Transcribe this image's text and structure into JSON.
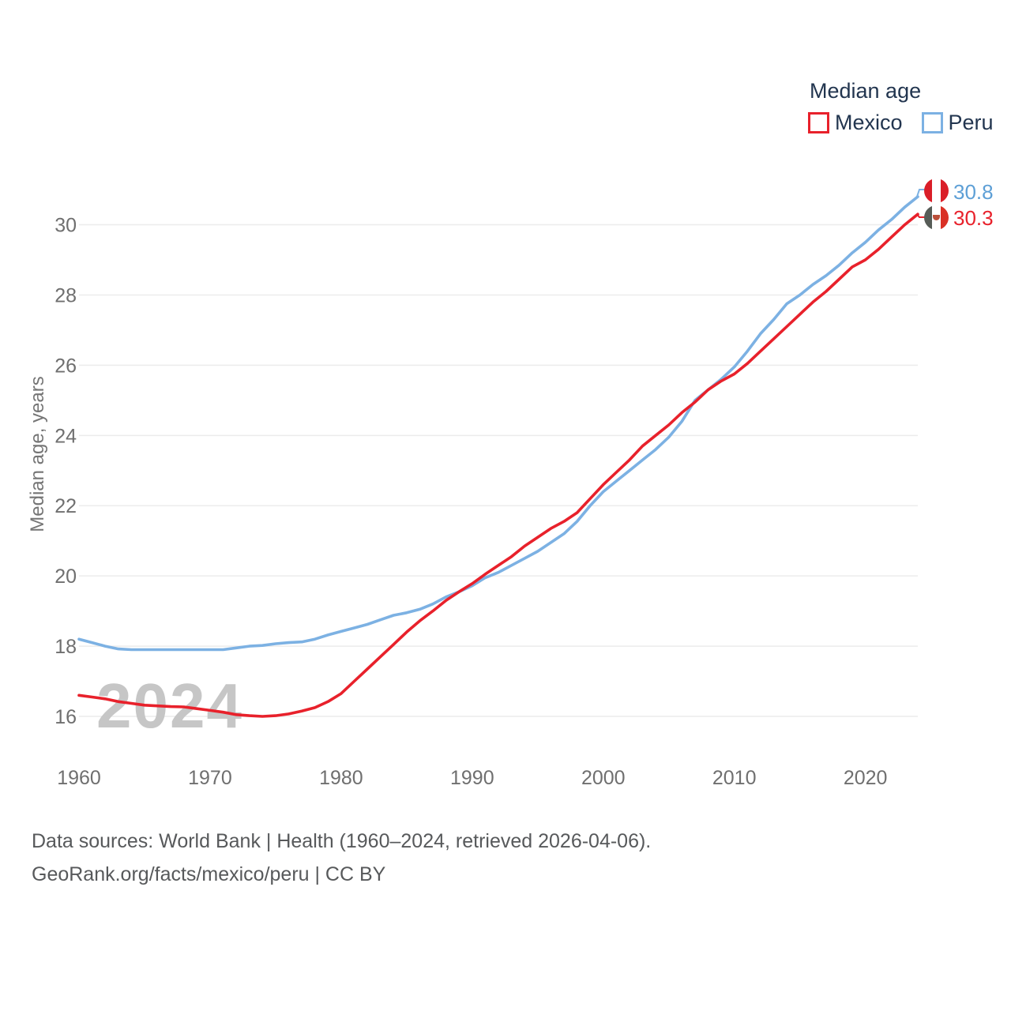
{
  "legend": {
    "title": "Median age",
    "items": [
      {
        "label": "Mexico",
        "color": "#e8212b"
      },
      {
        "label": "Peru",
        "color": "#7cb1e3"
      }
    ]
  },
  "watermark": "2024",
  "end_labels": [
    {
      "series": "Peru",
      "value": "30.8",
      "color": "#5d9fd6",
      "flag": "peru-flag"
    },
    {
      "series": "Mexico",
      "value": "30.3",
      "color": "#e8212b",
      "flag": "mexico-flag"
    }
  ],
  "footer": {
    "line1": "Data sources: World Bank | Health (1960–2024, retrieved 2026-04-06).",
    "line2": "GeoRank.org/facts/mexico/peru | CC BY"
  },
  "chart_data": {
    "type": "line",
    "title": "Median age",
    "xlabel": "",
    "ylabel": "Median age, years",
    "grid": "horizontal",
    "legend_position": "top-right",
    "xlim": [
      1960,
      2024
    ],
    "ylim": [
      15.3,
      31.3
    ],
    "x_ticks": [
      1960,
      1970,
      1980,
      1990,
      2000,
      2010,
      2020
    ],
    "y_ticks": [
      16,
      18,
      20,
      22,
      24,
      26,
      28,
      30
    ],
    "x": [
      1960,
      1961,
      1962,
      1963,
      1964,
      1965,
      1966,
      1967,
      1968,
      1969,
      1970,
      1971,
      1972,
      1973,
      1974,
      1975,
      1976,
      1977,
      1978,
      1979,
      1980,
      1981,
      1982,
      1983,
      1984,
      1985,
      1986,
      1987,
      1988,
      1989,
      1990,
      1991,
      1992,
      1993,
      1994,
      1995,
      1996,
      1997,
      1998,
      1999,
      2000,
      2001,
      2002,
      2003,
      2004,
      2005,
      2006,
      2007,
      2008,
      2009,
      2010,
      2011,
      2012,
      2013,
      2014,
      2015,
      2016,
      2017,
      2018,
      2019,
      2020,
      2021,
      2022,
      2023,
      2024
    ],
    "series": [
      {
        "name": "Peru",
        "color": "#7cb1e3",
        "end_value": 30.8,
        "values": [
          18.2,
          18.1,
          18.0,
          17.92,
          17.9,
          17.9,
          17.9,
          17.9,
          17.9,
          17.9,
          17.9,
          17.9,
          17.95,
          18.0,
          18.02,
          18.07,
          18.1,
          18.12,
          18.2,
          18.32,
          18.42,
          18.52,
          18.62,
          18.75,
          18.88,
          18.95,
          19.05,
          19.2,
          19.4,
          19.55,
          19.72,
          19.95,
          20.1,
          20.3,
          20.5,
          20.7,
          20.95,
          21.2,
          21.55,
          22.0,
          22.4,
          22.7,
          23.0,
          23.3,
          23.6,
          23.95,
          24.4,
          25.0,
          25.3,
          25.6,
          25.95,
          26.4,
          26.9,
          27.3,
          27.75,
          28.0,
          28.3,
          28.55,
          28.85,
          29.2,
          29.5,
          29.85,
          30.15,
          30.5,
          30.8
        ]
      },
      {
        "name": "Mexico",
        "color": "#e8212b",
        "end_value": 30.3,
        "values": [
          16.6,
          16.55,
          16.5,
          16.42,
          16.37,
          16.32,
          16.3,
          16.28,
          16.27,
          16.22,
          16.17,
          16.12,
          16.05,
          16.02,
          16.0,
          16.02,
          16.07,
          16.15,
          16.25,
          16.42,
          16.65,
          17.0,
          17.35,
          17.7,
          18.05,
          18.4,
          18.72,
          19.0,
          19.3,
          19.55,
          19.78,
          20.05,
          20.3,
          20.55,
          20.85,
          21.1,
          21.35,
          21.55,
          21.8,
          22.2,
          22.6,
          22.95,
          23.3,
          23.7,
          24.0,
          24.3,
          24.65,
          24.95,
          25.3,
          25.55,
          25.75,
          26.05,
          26.4,
          26.75,
          27.1,
          27.45,
          27.8,
          28.1,
          28.45,
          28.8,
          29.0,
          29.3,
          29.65,
          30.0,
          30.3
        ]
      }
    ]
  }
}
